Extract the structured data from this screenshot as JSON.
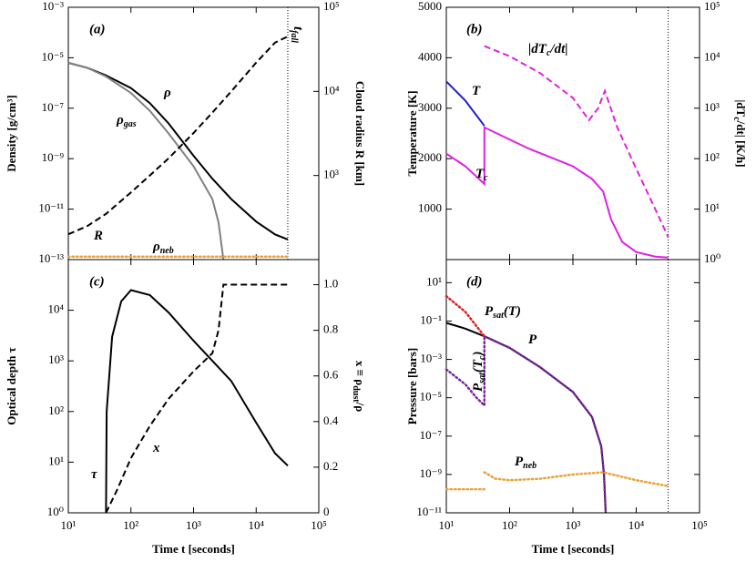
{
  "chart_data": [
    {
      "type": "line",
      "panel_label": "(a)",
      "ylabel": "Density [g/cm³]",
      "y2label": [
        {
          "text": "Cloud radius "
        },
        {
          "text": "R"
        },
        {
          "text": " [km]"
        }
      ],
      "xlog": true,
      "ylog": true,
      "y2log": true,
      "xlim": [
        10,
        100000
      ],
      "ylim": [
        1e-13,
        0.001
      ],
      "y2lim": [
        100,
        100000
      ],
      "yticks": [
        {
          "value": 1e-13,
          "label": "10⁻¹³"
        },
        {
          "value": 1e-11,
          "label": "10⁻¹¹"
        },
        {
          "value": 1e-09,
          "label": "10⁻⁹"
        },
        {
          "value": 1e-07,
          "label": "10⁻⁷"
        },
        {
          "value": 1e-05,
          "label": "10⁻⁵"
        },
        {
          "value": 0.001,
          "label": "10⁻³"
        }
      ],
      "y2ticks": [
        {
          "value": 1000,
          "label": "10³"
        },
        {
          "value": 10000,
          "label": "10⁴"
        },
        {
          "value": 100000,
          "label": "10⁵"
        }
      ],
      "vline": 32000,
      "vline_label": [
        {
          "text": "t"
        },
        {
          "sub": "fall"
        }
      ],
      "series": [
        {
          "label": [
            {
              "text": "ρ"
            }
          ],
          "color": "#000000",
          "dash": "solid",
          "x": [
            10,
            20,
            40,
            100,
            200,
            400,
            1000,
            2000,
            4000,
            10000,
            20000,
            32000
          ],
          "values": [
            6.3e-06,
            4e-06,
            2e-06,
            6.3e-07,
            1.6e-07,
            2.5e-08,
            1.3e-09,
            1.6e-10,
            2.5e-11,
            3.2e-12,
            1e-12,
            6.3e-13
          ]
        },
        {
          "label": [
            {
              "text": "ρ"
            },
            {
              "sub": "gas"
            }
          ],
          "color": "#808080",
          "dash": "solid",
          "x": [
            10,
            20,
            40,
            100,
            200,
            400,
            1000,
            2000,
            2500,
            3000
          ],
          "values": [
            6.3e-06,
            4e-06,
            1.8e-06,
            4e-07,
            8e-08,
            1e-08,
            5e-10,
            2.5e-11,
            3e-12,
            1e-13
          ]
        },
        {
          "label": [
            {
              "text": "R"
            }
          ],
          "color": "#000000",
          "dash": "dashed",
          "axis": "y2",
          "x": [
            10,
            20,
            40,
            100,
            200,
            400,
            1000,
            2000,
            4000,
            10000,
            20000,
            32000
          ],
          "values": [
            200,
            250,
            350,
            630,
            1000,
            1600,
            3200,
            5600,
            10000,
            22000,
            38000,
            45000
          ]
        },
        {
          "label": [
            {
              "text": "ρ"
            },
            {
              "sub": "neb"
            }
          ],
          "color": "#e8a33a",
          "dash": "dotted",
          "x": [
            10,
            32000
          ],
          "values": [
            1.3e-13,
            1.3e-13
          ]
        }
      ]
    },
    {
      "type": "line",
      "panel_label": "(b)",
      "ylabel": "Temperature [K]",
      "y2label": [
        {
          "text": "|dT"
        },
        {
          "sub": "c"
        },
        {
          "text": "/dt| [K/h]"
        }
      ],
      "xlog": true,
      "ylog": false,
      "y2log": true,
      "xlim": [
        10,
        100000
      ],
      "ylim": [
        0,
        5000
      ],
      "y2lim": [
        1,
        100000
      ],
      "yticks": [
        1000,
        2000,
        3000,
        4000,
        5000
      ],
      "y2ticks": [
        {
          "value": 1,
          "label": "10⁰"
        },
        {
          "value": 10,
          "label": "10¹"
        },
        {
          "value": 100,
          "label": "10²"
        },
        {
          "value": 1000,
          "label": "10³"
        },
        {
          "value": 10000,
          "label": "10⁴"
        },
        {
          "value": 100000,
          "label": "10⁵"
        }
      ],
      "vline": 32000,
      "series": [
        {
          "label": [
            {
              "text": "T"
            }
          ],
          "color": "#1f1fd0",
          "dash": "solid",
          "x": [
            10,
            20,
            40
          ],
          "values": [
            3530,
            3150,
            2650
          ]
        },
        {
          "label": [
            {
              "text": "T"
            },
            {
              "sub": "c"
            }
          ],
          "color": "#e020e0",
          "dash": "solid",
          "x": [
            10,
            20,
            40,
            40,
            100,
            200,
            400,
            1000,
            2000,
            3000,
            4000,
            6000,
            10000,
            20000,
            32000
          ],
          "values": [
            2100,
            1850,
            1500,
            2620,
            2380,
            2200,
            2050,
            1850,
            1600,
            1350,
            800,
            350,
            150,
            60,
            40
          ]
        },
        {
          "label": [
            {
              "text": "|dT"
            },
            {
              "sub": "c"
            },
            {
              "text": "/dt|"
            }
          ],
          "color": "#e020e0",
          "dash": "dashed",
          "axis": "y2",
          "x": [
            40,
            100,
            300,
            1000,
            1800,
            2500,
            3200,
            5000,
            10000,
            20000,
            32000
          ],
          "values": [
            17000,
            10700,
            5000,
            1600,
            580,
            1000,
            2200,
            420,
            63,
            10,
            2.8
          ]
        }
      ]
    },
    {
      "type": "line",
      "panel_label": "(c)",
      "xlabel": "Time t [seconds]",
      "ylabel": "Optical depth τ",
      "y2label": [
        {
          "text": "x ≡ ρ"
        },
        {
          "sub": "dust"
        },
        {
          "text": "/ρ"
        }
      ],
      "xlog": true,
      "ylog": true,
      "y2log": false,
      "xlim": [
        10,
        100000
      ],
      "ylim": [
        1,
        100000
      ],
      "y2lim": [
        0,
        1.11
      ],
      "xticks": [
        {
          "value": 10,
          "label": "10¹"
        },
        {
          "value": 100,
          "label": "10²"
        },
        {
          "value": 1000,
          "label": "10³"
        },
        {
          "value": 10000,
          "label": "10⁴"
        },
        {
          "value": 100000,
          "label": "10⁵"
        }
      ],
      "yticks": [
        {
          "value": 1,
          "label": "10⁰"
        },
        {
          "value": 10,
          "label": "10¹"
        },
        {
          "value": 100,
          "label": "10²"
        },
        {
          "value": 1000,
          "label": "10³"
        },
        {
          "value": 10000,
          "label": "10⁴"
        }
      ],
      "y2ticks": [
        0,
        0.2,
        0.4,
        0.6,
        0.8,
        {
          "value": 1.0,
          "label": "1.0"
        }
      ],
      "series": [
        {
          "label": [
            {
              "text": "τ"
            }
          ],
          "color": "#000000",
          "dash": "solid",
          "x": [
            40,
            41,
            50,
            70,
            100,
            200,
            400,
            1000,
            2000,
            4000,
            10000,
            20000,
            32000
          ],
          "values": [
            1,
            100,
            3000,
            15000,
            25000,
            20000,
            9000,
            2500,
            1000,
            400,
            60,
            15,
            8.5
          ]
        },
        {
          "label": [
            {
              "text": "x"
            }
          ],
          "color": "#000000",
          "dash": "dashed",
          "axis": "y2",
          "x": [
            40,
            60,
            100,
            200,
            400,
            1000,
            2000,
            2500,
            3000,
            32000
          ],
          "values": [
            0,
            0.1,
            0.24,
            0.38,
            0.5,
            0.62,
            0.7,
            0.8,
            1.0,
            1.0
          ]
        }
      ]
    },
    {
      "type": "line",
      "panel_label": "(d)",
      "xlabel": "Time t [seconds]",
      "ylabel": "Pressure [bars]",
      "xlog": true,
      "ylog": true,
      "xlim": [
        10,
        100000
      ],
      "ylim": [
        1e-11,
        160
      ],
      "xticks": [
        {
          "value": 10,
          "label": "10¹"
        },
        {
          "value": 100,
          "label": "10²"
        },
        {
          "value": 1000,
          "label": "10³"
        },
        {
          "value": 10000,
          "label": "10⁴"
        },
        {
          "value": 100000,
          "label": "10⁵"
        }
      ],
      "yticks": [
        {
          "value": 1e-11,
          "label": "10⁻¹¹"
        },
        {
          "value": 1e-09,
          "label": "10⁻⁹"
        },
        {
          "value": 1e-07,
          "label": "10⁻⁷"
        },
        {
          "value": 1e-05,
          "label": "10⁻⁵"
        },
        {
          "value": 0.001,
          "label": "10⁻³"
        },
        {
          "value": 0.1,
          "label": "10⁻¹"
        },
        {
          "value": 10,
          "label": "10¹"
        }
      ],
      "vline": 32000,
      "series": [
        {
          "label": [
            {
              "text": "P"
            }
          ],
          "color": "#000000",
          "dash": "solid",
          "x": [
            10,
            20,
            40,
            100,
            300,
            1000,
            2000,
            2800,
            3100,
            3300
          ],
          "values": [
            0.08,
            0.04,
            0.016,
            0.004,
            0.0004,
            2e-05,
            1e-06,
            3e-08,
            1e-09,
            1e-11
          ]
        },
        {
          "label": [
            {
              "text": "P"
            },
            {
              "sub": "sat"
            },
            {
              "text": "(T)"
            }
          ],
          "color": "#e02020",
          "dash": "dotted",
          "x": [
            10,
            20,
            40
          ],
          "values": [
            2,
            0.3,
            0.016
          ]
        },
        {
          "label": [
            {
              "text": "P"
            },
            {
              "sub": "sat"
            },
            {
              "text": "(T"
            },
            {
              "sub": "c"
            },
            {
              "text": ")"
            }
          ],
          "color": "#7a2a9a",
          "dash": "dotted",
          "x": [
            10,
            20,
            30,
            40,
            40,
            100,
            300,
            1000,
            2000,
            2800,
            3100,
            3300
          ],
          "values": [
            0.0003,
            5e-05,
            1e-05,
            4e-06,
            0.016,
            0.004,
            0.0004,
            2e-05,
            1e-06,
            3e-08,
            1e-09,
            1e-11
          ]
        },
        {
          "label": [
            {
              "text": "P"
            },
            {
              "sub": "neb"
            }
          ],
          "color": "#e8a33a",
          "dash": "dotted",
          "x": [
            10,
            20,
            40,
            40,
            40,
            60,
            100,
            300,
            1000,
            3000,
            10000,
            32000
          ],
          "values": [
            1.7e-10,
            1.7e-10,
            1.7e-10,
            null,
            1.3e-09,
            6e-10,
            5e-10,
            6e-10,
            1e-09,
            1.3e-09,
            5e-10,
            2.5e-10
          ]
        }
      ]
    }
  ]
}
